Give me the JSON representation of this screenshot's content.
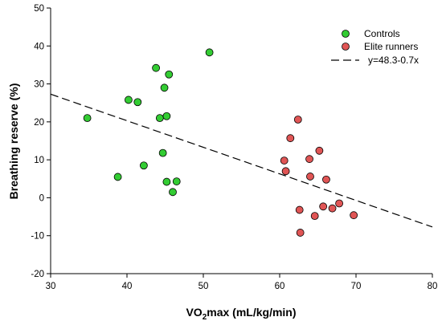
{
  "chart_data": {
    "type": "scatter",
    "xlabel_main": "VO",
    "xlabel_sub": "2",
    "xlabel_rest": "max (mL/kg/min)",
    "ylabel": "Breathing reserve (%)",
    "xlim": [
      30,
      80
    ],
    "ylim": [
      -20,
      50
    ],
    "xticks": [
      "30",
      "40",
      "50",
      "60",
      "70",
      "80"
    ],
    "yticks": [
      "-20",
      "-10",
      "0",
      "10",
      "20",
      "30",
      "40",
      "50"
    ],
    "grid": false,
    "legend_position": "top-right",
    "series": [
      {
        "name": "Controls",
        "color": "#33cc33",
        "points": [
          [
            34.8,
            21.0
          ],
          [
            38.8,
            5.5
          ],
          [
            40.2,
            25.8
          ],
          [
            41.4,
            25.2
          ],
          [
            42.2,
            8.5
          ],
          [
            43.8,
            34.2
          ],
          [
            44.3,
            21.0
          ],
          [
            44.7,
            11.8
          ],
          [
            44.9,
            29.0
          ],
          [
            45.2,
            21.5
          ],
          [
            45.2,
            4.2
          ],
          [
            45.5,
            32.5
          ],
          [
            46.0,
            1.5
          ],
          [
            46.5,
            4.3
          ],
          [
            50.8,
            38.3
          ]
        ]
      },
      {
        "name": "Elite runners",
        "color": "#e05555",
        "points": [
          [
            60.6,
            9.8
          ],
          [
            60.8,
            7.0
          ],
          [
            61.4,
            15.7
          ],
          [
            62.4,
            20.6
          ],
          [
            62.6,
            -3.2
          ],
          [
            62.7,
            -9.2
          ],
          [
            63.9,
            10.2
          ],
          [
            64.0,
            5.6
          ],
          [
            64.6,
            -4.8
          ],
          [
            65.2,
            12.4
          ],
          [
            65.7,
            -2.3
          ],
          [
            66.1,
            4.8
          ],
          [
            66.9,
            -2.8
          ],
          [
            67.8,
            -1.5
          ],
          [
            69.7,
            -4.6
          ]
        ]
      }
    ],
    "regression": {
      "label": "y=48.3-0.7x",
      "intercept": 48.3,
      "slope": -0.7,
      "x_range": [
        30,
        80
      ]
    }
  }
}
